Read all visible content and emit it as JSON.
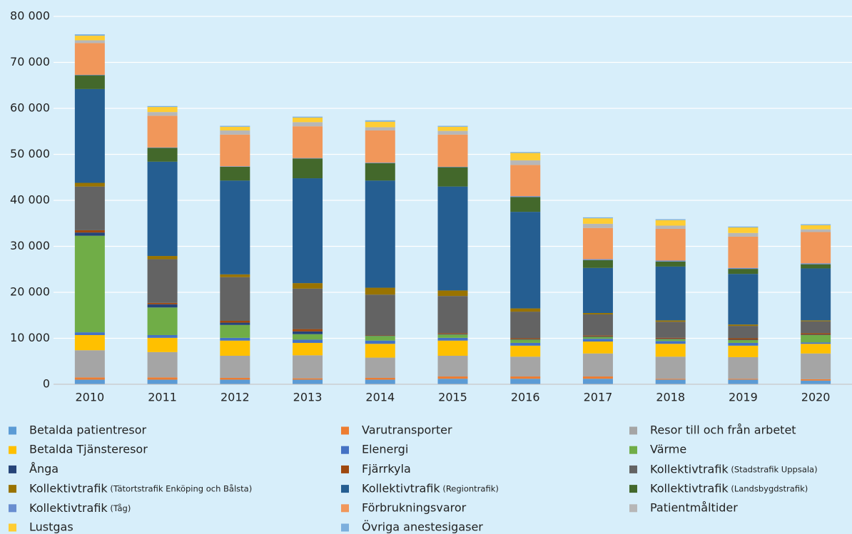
{
  "chart_data": {
    "type": "stacked_bar",
    "categories": [
      "2010",
      "2011",
      "2012",
      "2013",
      "2014",
      "2015",
      "2016",
      "2017",
      "2018",
      "2019",
      "2020"
    ],
    "ylim": [
      0,
      80000
    ],
    "yticks": [
      0,
      {
        "value": 10000,
        "label": "10 000"
      },
      {
        "value": 20000,
        "label": "20 000"
      },
      {
        "value": 30000,
        "label": "30 000"
      },
      {
        "value": 40000,
        "label": "40 000"
      },
      {
        "value": 50000,
        "label": "50 000"
      },
      {
        "value": 60000,
        "label": "60 000"
      },
      {
        "value": 70000,
        "label": "70 000"
      },
      {
        "value": 80000,
        "label": "80 000"
      }
    ],
    "grid": true,
    "series": [
      {
        "name": "Betalda patientresor",
        "color": "#5b9bd5",
        "values": [
          1000,
          1000,
          1000,
          1000,
          1000,
          1200,
          1200,
          1200,
          1000,
          1000,
          800
        ]
      },
      {
        "name": "Varutransporter",
        "color": "#ed7d31",
        "values": [
          500,
          500,
          400,
          300,
          400,
          500,
          500,
          500,
          200,
          200,
          300
        ]
      },
      {
        "name": "Resor till och från arbetet",
        "color": "#a5a5a5",
        "values": [
          5900,
          5500,
          4800,
          5000,
          4400,
          4500,
          4300,
          5000,
          4800,
          4700,
          5600
        ]
      },
      {
        "name": "Betalda Tjänsteresor",
        "color": "#ffc000",
        "values": [
          3300,
          3100,
          3300,
          2700,
          3000,
          3300,
          2400,
          2600,
          2800,
          2500,
          2100
        ]
      },
      {
        "name": "Elenergi",
        "color": "#4472c4",
        "values": [
          600,
          600,
          600,
          700,
          700,
          600,
          600,
          600,
          600,
          600,
          300
        ]
      },
      {
        "name": "Värme",
        "color": "#70ad47",
        "values": [
          21000,
          6000,
          2800,
          1200,
          1000,
          700,
          700,
          400,
          400,
          600,
          1600
        ]
      },
      {
        "name": "Ånga",
        "color": "#264478",
        "values": [
          700,
          700,
          500,
          600,
          100,
          100,
          100,
          100,
          100,
          100,
          100
        ]
      },
      {
        "name": "Fjärrkyla",
        "color": "#9e480e",
        "values": [
          500,
          300,
          400,
          500,
          100,
          200,
          200,
          200,
          200,
          300,
          300
        ]
      },
      {
        "name": "Kollektivtrafik (Stadstrafik Uppsala)",
        "color": "#636363",
        "values": [
          9500,
          9500,
          9500,
          8800,
          8800,
          8100,
          5800,
          4600,
          3500,
          2700,
          2600
        ]
      },
      {
        "name": "Kollektivtrafik (Tätortstrafik Enköping och Bålsta)",
        "color": "#997300",
        "values": [
          800,
          700,
          600,
          1200,
          1500,
          1200,
          700,
          300,
          300,
          300,
          200
        ]
      },
      {
        "name": "Kollektivtrafik (Regiontrafik)",
        "color": "#255e91",
        "values": [
          20400,
          20500,
          20400,
          22800,
          23300,
          22600,
          21000,
          9800,
          11700,
          11000,
          11300
        ]
      },
      {
        "name": "Kollektivtrafik (Landsbygdstrafik)",
        "color": "#43682b",
        "values": [
          3000,
          3000,
          3000,
          4300,
          3800,
          4200,
          3200,
          1700,
          1100,
          1100,
          900
        ]
      },
      {
        "name": "Kollektivtrafik (Tåg)",
        "color": "#698ed0",
        "values": [
          100,
          100,
          100,
          100,
          100,
          100,
          200,
          200,
          200,
          200,
          200
        ]
      },
      {
        "name": "Förbrukningsvaror",
        "color": "#f1975a",
        "values": [
          6900,
          6900,
          6900,
          6900,
          7000,
          7000,
          6800,
          6800,
          6900,
          6800,
          6800
        ]
      },
      {
        "name": "Patientmåltider",
        "color": "#b7b7b7",
        "values": [
          600,
          800,
          900,
          900,
          700,
          800,
          1000,
          900,
          700,
          800,
          600
        ]
      },
      {
        "name": "Lustgas",
        "color": "#ffcd33",
        "values": [
          1000,
          1100,
          800,
          1000,
          1200,
          900,
          1600,
          1200,
          1200,
          1200,
          900
        ]
      },
      {
        "name": "Övriga anestesigaser",
        "color": "#7cafdd",
        "values": [
          300,
          200,
          200,
          200,
          300,
          200,
          200,
          200,
          200,
          200,
          200
        ]
      }
    ]
  }
}
